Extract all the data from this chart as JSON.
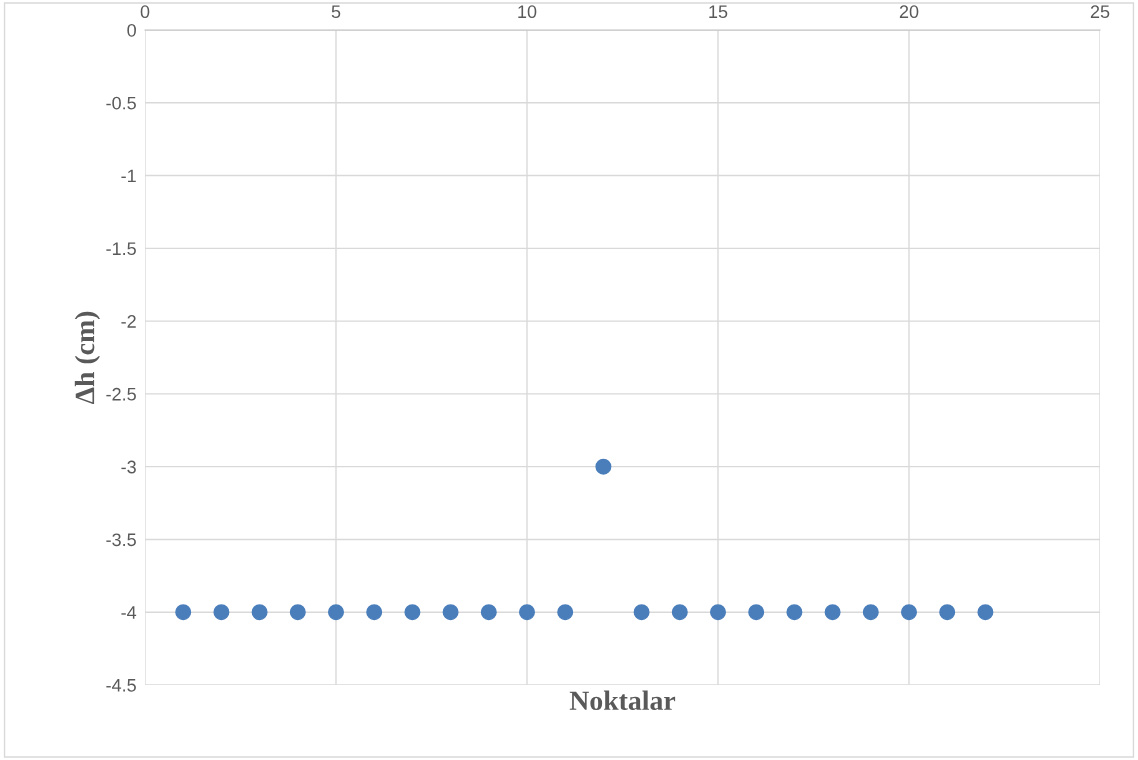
{
  "chart_data": {
    "type": "scatter",
    "xlabel": "Noktalar",
    "ylabel": "Δh (cm)",
    "x": [
      1,
      2,
      3,
      4,
      5,
      6,
      7,
      8,
      9,
      10,
      11,
      12,
      13,
      14,
      15,
      16,
      17,
      18,
      19,
      20,
      21,
      22
    ],
    "series": [
      {
        "color": "#4a7ebb",
        "values": [
          -4,
          -4,
          -4,
          -4,
          -4,
          -4,
          -4,
          -4,
          -4,
          -4,
          -4,
          -3,
          -4,
          -4,
          -4,
          -4,
          -4,
          -4,
          -4,
          -4,
          -4,
          -4
        ]
      }
    ],
    "xlim": [
      0,
      25
    ],
    "xticks": [
      0,
      5,
      10,
      15,
      20,
      25
    ],
    "ylim": [
      -4.5,
      0
    ],
    "yticks": [
      -4.5,
      -4,
      -3.5,
      -3,
      -2.5,
      -2,
      -1.5,
      -1,
      -0.5,
      0
    ],
    "grid": true,
    "marker": "circle"
  }
}
